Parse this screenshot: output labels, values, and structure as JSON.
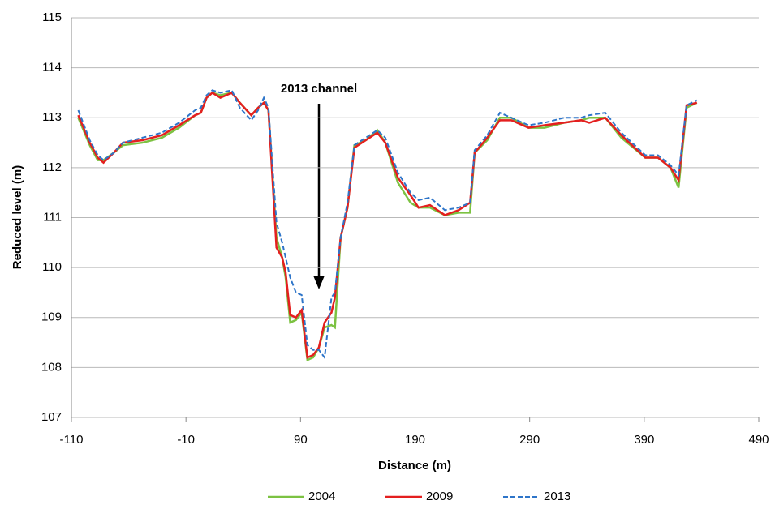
{
  "chart_data": {
    "type": "line",
    "annotation": "2013 channel",
    "x_label": "Distance (m)",
    "y_label": "Reduced level (m)",
    "xlim": [
      -110,
      490
    ],
    "xticks": [
      -110,
      -10,
      90,
      190,
      290,
      390,
      490
    ],
    "ylim": [
      107,
      115
    ],
    "yticks": [
      107,
      108,
      109,
      110,
      111,
      112,
      113,
      114,
      115
    ],
    "grid": true,
    "legend": "bottom",
    "x": [
      -104,
      -94,
      -87,
      -82,
      -73,
      -65,
      -48,
      -31,
      -16,
      -2,
      3,
      8,
      13,
      20,
      30,
      37,
      47,
      53,
      58,
      62,
      69,
      74,
      77,
      81,
      86,
      91,
      96,
      101,
      106,
      111,
      117,
      120,
      125,
      131,
      137,
      147,
      157,
      164,
      175,
      186,
      193,
      203,
      216,
      228,
      238,
      242,
      253,
      264,
      274,
      289,
      303,
      320,
      335,
      342,
      356,
      370,
      391,
      402,
      413,
      420,
      427,
      436
    ],
    "series": [
      {
        "name": "2004",
        "color": "#7cc242",
        "dash": false,
        "values": [
          113.0,
          112.45,
          112.15,
          112.15,
          112.3,
          112.45,
          112.5,
          112.6,
          112.8,
          113.05,
          113.1,
          113.4,
          113.5,
          113.45,
          113.5,
          113.3,
          113.05,
          113.2,
          113.3,
          113.15,
          110.6,
          110.2,
          109.8,
          108.9,
          108.95,
          109.1,
          108.15,
          108.2,
          108.4,
          108.8,
          108.85,
          108.8,
          110.6,
          111.2,
          112.45,
          112.55,
          112.75,
          112.5,
          111.7,
          111.3,
          111.2,
          111.2,
          111.05,
          111.1,
          111.1,
          112.3,
          112.55,
          113.0,
          113.0,
          112.8,
          112.8,
          112.9,
          112.95,
          113.0,
          113.0,
          112.6,
          112.2,
          112.2,
          112.0,
          111.6,
          113.2,
          113.3
        ]
      },
      {
        "name": "2009",
        "color": "#e41f1f",
        "dash": false,
        "values": [
          113.05,
          112.5,
          112.2,
          112.1,
          112.3,
          112.5,
          112.55,
          112.65,
          112.85,
          113.05,
          113.1,
          113.4,
          113.5,
          113.4,
          113.5,
          113.3,
          113.05,
          113.2,
          113.3,
          113.15,
          110.4,
          110.2,
          109.9,
          109.05,
          109.0,
          109.15,
          108.2,
          108.25,
          108.4,
          108.9,
          109.1,
          109.4,
          110.6,
          111.2,
          112.4,
          112.55,
          112.7,
          112.5,
          111.8,
          111.45,
          111.2,
          111.25,
          111.05,
          111.15,
          111.3,
          112.3,
          112.6,
          112.95,
          112.95,
          112.8,
          112.85,
          112.9,
          112.95,
          112.9,
          113.0,
          112.65,
          112.2,
          112.2,
          112.0,
          111.75,
          113.25,
          113.3
        ]
      },
      {
        "name": "2013",
        "color": "#2e75c9",
        "dash": true,
        "values": [
          113.15,
          112.55,
          112.25,
          112.15,
          112.3,
          112.5,
          112.6,
          112.7,
          112.9,
          113.15,
          113.2,
          113.45,
          113.55,
          113.5,
          113.55,
          113.2,
          112.95,
          113.15,
          113.4,
          113.2,
          110.9,
          110.5,
          110.2,
          109.8,
          109.5,
          109.45,
          108.45,
          108.35,
          108.35,
          108.2,
          109.4,
          109.5,
          110.6,
          111.3,
          112.45,
          112.6,
          112.75,
          112.6,
          111.9,
          111.5,
          111.35,
          111.4,
          111.15,
          111.2,
          111.3,
          112.35,
          112.65,
          113.1,
          113.0,
          112.85,
          112.9,
          113.0,
          113.0,
          113.05,
          113.1,
          112.7,
          112.25,
          112.25,
          112.05,
          111.85,
          113.25,
          113.35
        ]
      }
    ]
  }
}
